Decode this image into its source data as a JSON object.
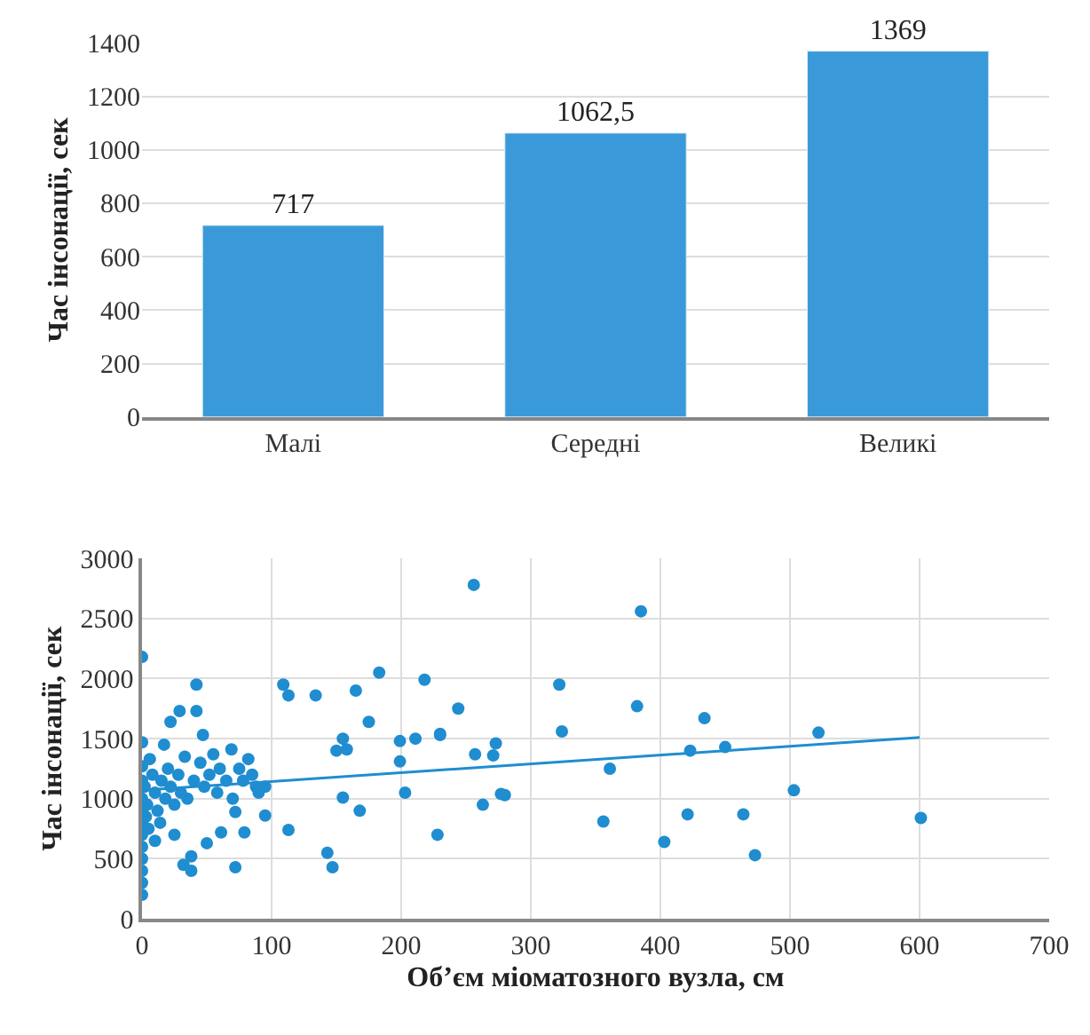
{
  "chart_data": [
    {
      "type": "bar",
      "ylabel": "Час інсонації, сек",
      "categories": [
        "Малі",
        "Середні",
        "Великі"
      ],
      "values": [
        717,
        1062.5,
        1369
      ],
      "value_labels": [
        "717",
        "1062,5",
        "1369"
      ],
      "color": "#3a9ad9",
      "ylim": [
        0,
        1400
      ],
      "yticks": [
        0,
        200,
        400,
        600,
        800,
        1000,
        1200,
        1400
      ],
      "grid": "y"
    },
    {
      "type": "scatter",
      "xlabel": "Об’єм міоматозного вузла, см",
      "ylabel": "Час інсонації, сек",
      "xlim": [
        0,
        700
      ],
      "xticks": [
        0,
        100,
        200,
        300,
        400,
        500,
        600,
        700
      ],
      "ylim": [
        0,
        3000
      ],
      "yticks": [
        0,
        500,
        1000,
        1500,
        2000,
        2500,
        3000
      ],
      "grid": true,
      "marker": "circle",
      "series": [
        {
          "color": "#1f8dd0",
          "x": [
            0,
            0,
            0,
            0,
            0,
            0,
            0,
            0,
            0,
            0,
            0,
            0,
            0,
            2,
            3,
            4,
            5,
            6,
            8,
            10,
            10,
            12,
            14,
            15,
            17,
            18,
            20,
            22,
            22,
            25,
            25,
            28,
            29,
            30,
            32,
            33,
            35,
            38,
            38,
            40,
            42,
            42,
            45,
            47,
            48,
            50,
            52,
            55,
            58,
            60,
            61,
            65,
            69,
            70,
            72,
            72,
            75,
            78,
            79,
            82,
            85,
            88,
            90,
            95,
            95,
            109,
            113,
            113,
            134,
            143,
            147,
            150,
            155,
            155,
            158,
            165,
            168,
            175,
            183,
            199,
            199,
            203,
            211,
            218,
            228,
            230,
            230,
            244,
            256,
            257,
            263,
            271,
            273,
            277,
            280,
            322,
            324,
            356,
            361,
            382,
            385,
            403,
            421,
            423,
            434,
            450,
            464,
            473,
            503,
            522,
            601
          ],
          "values": [
            2180,
            1470,
            1270,
            1150,
            1000,
            900,
            800,
            700,
            600,
            500,
            400,
            300,
            200,
            1100,
            850,
            950,
            750,
            1330,
            1200,
            1050,
            650,
            900,
            800,
            1150,
            1450,
            1000,
            1250,
            1640,
            1100,
            700,
            950,
            1200,
            1730,
            1050,
            450,
            1350,
            1000,
            520,
            400,
            1150,
            1950,
            1730,
            1300,
            1530,
            1100,
            630,
            1200,
            1370,
            1050,
            1250,
            720,
            1150,
            1410,
            1000,
            890,
            430,
            1250,
            1150,
            720,
            1330,
            1200,
            1100,
            1050,
            860,
            1100,
            1950,
            1860,
            740,
            1860,
            550,
            430,
            1400,
            1500,
            1010,
            1410,
            1900,
            900,
            1640,
            2050,
            1480,
            1310,
            1050,
            1500,
            1990,
            700,
            1540,
            1530,
            1750,
            2780,
            1370,
            950,
            1360,
            1460,
            1040,
            1030,
            1950,
            1560,
            810,
            1250,
            1770,
            2560,
            640,
            870,
            1400,
            1670,
            1430,
            870,
            530,
            1070,
            1550,
            840
          ]
        },
        {
          "type": "line",
          "color": "#1f8dd0",
          "x": [
            0,
            600
          ],
          "values": [
            1070,
            1510
          ],
          "marker": "none",
          "line_style": "solid"
        }
      ]
    }
  ]
}
